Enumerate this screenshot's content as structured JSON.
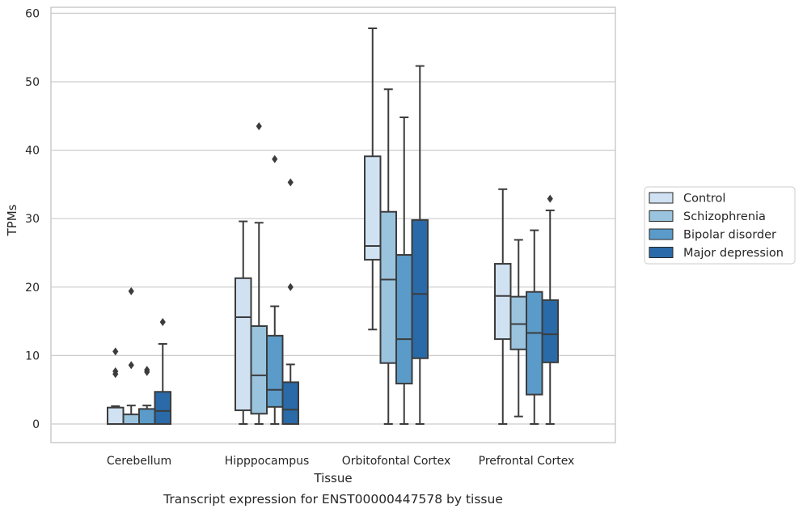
{
  "chart_data": {
    "type": "box",
    "caption": "Transcript expression for ENST00000447578 by tissue",
    "xlabel": "Tissue",
    "ylabel": "TPMs",
    "ylim": [
      -2.8,
      60.8
    ],
    "yticks": [
      0,
      10,
      20,
      30,
      40,
      50,
      60
    ],
    "grid": "horizontal",
    "legend_position": "outside-right",
    "categories": [
      "Cerebellum",
      "Hipppocampus",
      "Orbitofontal Cortex",
      "Prefrontal Cortex"
    ],
    "series": [
      {
        "name": "Control",
        "color": "#d0e1f2",
        "boxes": [
          {
            "whislo": 0,
            "q1": 0,
            "med": 0,
            "q3": 2.4,
            "whishi": 2.6,
            "fliers": [
              7.3,
              7.7,
              10.6
            ]
          },
          {
            "whislo": 0,
            "q1": 2.0,
            "med": 15.6,
            "q3": 21.3,
            "whishi": 29.6,
            "fliers": []
          },
          {
            "whislo": 13.8,
            "q1": 24.0,
            "med": 26.0,
            "q3": 39.1,
            "whishi": 57.8,
            "fliers": []
          },
          {
            "whislo": 0,
            "q1": 12.4,
            "med": 18.7,
            "q3": 23.4,
            "whishi": 34.3,
            "fliers": []
          }
        ]
      },
      {
        "name": "Schizophrenia",
        "color": "#9ac3de",
        "boxes": [
          {
            "whislo": 0,
            "q1": 0,
            "med": 0,
            "q3": 1.4,
            "whishi": 2.7,
            "fliers": [
              8.6,
              19.4
            ]
          },
          {
            "whislo": 0,
            "q1": 1.5,
            "med": 7.1,
            "q3": 14.3,
            "whishi": 29.4,
            "fliers": [
              43.5
            ]
          },
          {
            "whislo": 0,
            "q1": 8.9,
            "med": 21.1,
            "q3": 31.0,
            "whishi": 48.9,
            "fliers": []
          },
          {
            "whislo": 1.1,
            "q1": 10.9,
            "med": 14.6,
            "q3": 18.6,
            "whishi": 26.9,
            "fliers": []
          }
        ]
      },
      {
        "name": "Bipolar disorder",
        "color": "#5a9bc9",
        "boxes": [
          {
            "whislo": 0,
            "q1": 0,
            "med": 0,
            "q3": 2.2,
            "whishi": 2.7,
            "fliers": [
              7.6,
              7.9
            ]
          },
          {
            "whislo": 0,
            "q1": 2.5,
            "med": 5.0,
            "q3": 12.9,
            "whishi": 17.2,
            "fliers": [
              38.7
            ]
          },
          {
            "whislo": 0,
            "q1": 5.9,
            "med": 12.4,
            "q3": 24.7,
            "whishi": 44.8,
            "fliers": []
          },
          {
            "whislo": 0,
            "q1": 4.3,
            "med": 13.3,
            "q3": 19.3,
            "whishi": 28.3,
            "fliers": []
          }
        ]
      },
      {
        "name": "Major depression",
        "color": "#2a6aa8",
        "boxes": [
          {
            "whislo": 0,
            "q1": 0,
            "med": 1.9,
            "q3": 4.7,
            "whishi": 11.7,
            "fliers": [
              14.9
            ]
          },
          {
            "whislo": 0,
            "q1": 0,
            "med": 2.1,
            "q3": 6.1,
            "whishi": 8.7,
            "fliers": [
              20.0,
              35.3
            ]
          },
          {
            "whislo": 0,
            "q1": 9.6,
            "med": 19.0,
            "q3": 29.8,
            "whishi": 52.3,
            "fliers": []
          },
          {
            "whislo": 0,
            "q1": 9.0,
            "med": 13.1,
            "q3": 18.1,
            "whishi": 31.2,
            "fliers": [
              32.9
            ]
          }
        ]
      }
    ]
  }
}
